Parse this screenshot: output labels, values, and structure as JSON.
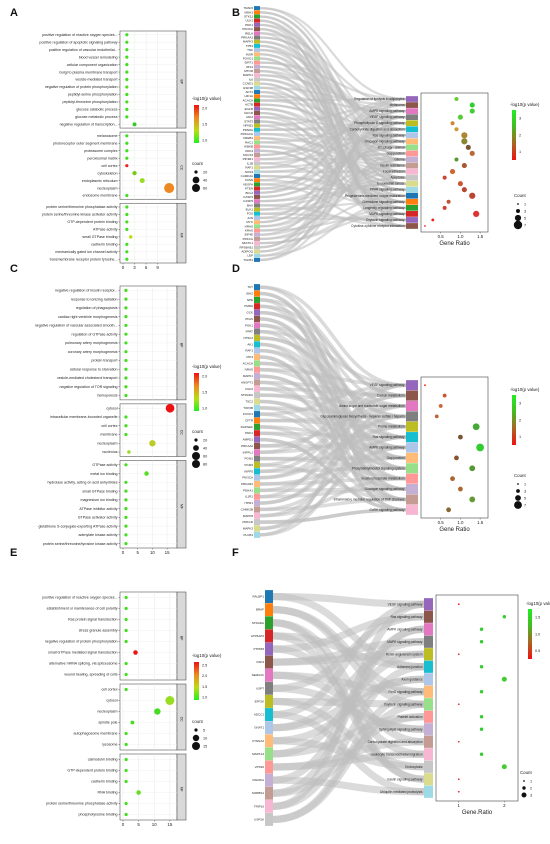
{
  "chart_data": [
    {
      "panel": "A",
      "type": "scatter",
      "groups": [
        {
          "name": "BP",
          "terms": [
            "positive regulation of reactive oxygen species...",
            "positive regulation of apoptotic signaling pathway",
            "positive regulation of vascular endothelial...",
            "blood vessel remodeling",
            "cellular component organization",
            "Golgi to plasma membrane transport",
            "vesicle-mediated transport",
            "negative regulation of protein phosphorylation",
            "peptidyl-serine phosphorylation",
            "peptidyl-threonine phosphorylation",
            "glucose catabolic process",
            "glucose metabolic process",
            "negative regulation of transcription..."
          ],
          "x": [
            1,
            1,
            1,
            1,
            1,
            1,
            1,
            1,
            1,
            1,
            1,
            1,
            3
          ],
          "color": [
            "#44dd22",
            "#44dd22",
            "#44dd22",
            "#44dd22",
            "#44dd22",
            "#44dd22",
            "#44dd22",
            "#55dd22",
            "#44dd22",
            "#44dd22",
            "#44dd22",
            "#44dd22",
            "#33cc22"
          ],
          "size": [
            20,
            20,
            20,
            20,
            20,
            20,
            20,
            20,
            20,
            20,
            20,
            20,
            24
          ]
        },
        {
          "name": "CC",
          "terms": [
            "melanosome",
            "photoreceptor outer segment membrane",
            "proteasome complex",
            "peroxisomal matrix",
            "cell cortex",
            "cytoskeleton",
            "endoplasmic reticulum",
            "nucleoplasm",
            "endosome membrane"
          ],
          "x": [
            1,
            1,
            1,
            1,
            1,
            3,
            5,
            12,
            1
          ],
          "color": [
            "#44dd22",
            "#44dd22",
            "#44dd22",
            "#44dd22",
            "#ee2222",
            "#77cc11",
            "#99dd22",
            "#ee8822",
            "#44dd22"
          ],
          "size": [
            20,
            20,
            20,
            20,
            20,
            26,
            30,
            58,
            20
          ]
        },
        {
          "name": "MF",
          "terms": [
            "protein serine/threonine phosphatase activity",
            "protein serine/threonine kinase activator activity",
            "GTP-dependent protein binding",
            "ATPase activity",
            "small GTPase binding",
            "cadherin binding",
            "mechanically gated ion channel activity",
            "transmembrane receptor protein tyrosine..."
          ],
          "x": [
            1,
            1,
            1,
            1,
            2,
            1,
            1,
            1
          ],
          "color": [
            "#44dd22",
            "#44dd22",
            "#44dd22",
            "#44dd22",
            "#bbdd11",
            "#44dd22",
            "#44dd22",
            "#44dd22"
          ],
          "size": [
            20,
            20,
            20,
            20,
            22,
            20,
            20,
            20
          ]
        }
      ],
      "xticks": [
        0,
        3,
        6,
        9
      ],
      "xlim": [
        0,
        13
      ],
      "colorbar": {
        "title": "-log10(p value)",
        "ticks": [
          "1.0",
          "1.5",
          "2.0"
        ]
      },
      "size_legend": {
        "title": "count",
        "values": [
          "20",
          "40",
          "60"
        ]
      }
    },
    {
      "panel": "B",
      "type": "scatter",
      "genes": [
        "TRAF6",
        "MDH1",
        "STK11",
        "ULK1",
        "PDK1",
        "PIK3CA",
        "RELA",
        "PRKAA1",
        "MAPK3",
        "TP53",
        "TNF",
        "INSR",
        "FOXO1",
        "SIRT1",
        "IRS1",
        "MTOR",
        "MAPK1",
        "IL6",
        "CCND1",
        "GSK3B",
        "AKT1",
        "HIF1A",
        "ACACA",
        "ACTB",
        "EGFR",
        "IGF1R",
        "JAK2",
        "STAT3",
        "NFKB1",
        "PPARG",
        "PRKACA",
        "CREB1",
        "RAC1",
        "IKBKB",
        "CDK4",
        "SOCS3",
        "PIK3R1",
        "IL1B",
        "RAF1",
        "NOS3",
        "CAMK2A",
        "FASN",
        "VEGFA",
        "PTEN",
        "BCL2",
        "CASP3",
        "CASP9",
        "BAX",
        "ELK1",
        "FOS",
        "JUN",
        "MYC",
        "HRAS",
        "KRAS",
        "EIF4E",
        "PRKCA",
        "NFATC1",
        "RPS6KB1",
        "ADIPOQ",
        "LEP",
        "TGFB1"
      ],
      "pathways": [
        "Regulation of lipolysis in adipocytes",
        "Melanoma",
        "AMPK signaling pathway",
        "VEGF signaling pathway",
        "Phospholipase D signaling pathway",
        "Carbohydrate digestion and absorption",
        "Ras signaling pathway",
        "Glucagon signaling pathway",
        "Mitophagy - animal",
        "Gap junction",
        "Glioma",
        "Insulin resistance",
        "Focal adhesion",
        "Apoptosis",
        "Endometrial cancer",
        "PPAR signaling pathway",
        "Progesterone-mediated oocyte maturation",
        "Chemokine signaling pathway",
        "Longevity regulating pathway",
        "MAPK signaling pathway",
        "Oxytocin signaling pathway",
        "Cytokine-cytokine receptor interaction"
      ],
      "x": [
        0.9,
        1.3,
        1.3,
        1.0,
        0.8,
        0.9,
        1.1,
        1.1,
        1.2,
        1.3,
        0.9,
        1.1,
        0.8,
        0.6,
        1.0,
        1.1,
        1.3,
        0.7,
        0.6,
        1.4,
        0.3,
        0.1
      ],
      "color": [
        "#66cc33",
        "#33cc33",
        "#44cc33",
        "#55cc33",
        "#cc8833",
        "#cc9933",
        "#aa8833",
        "#888833",
        "#775533",
        "#bb6633",
        "#559933",
        "#aa5533",
        "#cc6633",
        "#cc4433",
        "#cc5533",
        "#bb4433",
        "#bb4433",
        "#bb5533",
        "#cc4433",
        "#dd3333",
        "#ee2222",
        "#ee2222"
      ],
      "size": [
        3,
        4,
        4,
        4,
        3,
        3,
        5,
        5,
        4,
        4,
        3,
        4,
        4,
        3,
        4,
        4,
        5,
        3,
        3,
        5,
        2,
        1
      ],
      "xticks": [
        "0.5",
        "1.0",
        "1.5"
      ],
      "xlabel": "Gene Ratio",
      "colorbar": {
        "title": "-log10(p value)",
        "ticks": [
          "1",
          "2",
          "3"
        ]
      },
      "size_legend": {
        "title": "Count",
        "values": [
          "1",
          "3",
          "5",
          "7"
        ]
      }
    },
    {
      "panel": "C",
      "type": "scatter",
      "groups": [
        {
          "name": "BP",
          "terms": [
            "negative regulation of insulin receptor...",
            "response to ionizing radiation",
            "regulation of phagocytosis",
            "cardiac right ventricle morphogenesis",
            "negative regulation of vascular associated smooth...",
            "regulation of GTPase activity",
            "pulmonary artery morphogenesis",
            "coronary artery morphogenesis",
            "protein transport",
            "cellular response to starvation",
            "vesicle-mediated cholesterol transport",
            "negative regulation of TOR signaling",
            "hemopoiesis"
          ],
          "x": [
            1,
            1,
            1,
            1,
            1,
            1,
            1,
            1,
            1,
            1,
            1,
            1,
            1
          ],
          "color": [
            "#44dd22",
            "#44dd22",
            "#44dd22",
            "#44dd22",
            "#44dd22",
            "#44dd22",
            "#44dd22",
            "#44dd22",
            "#44dd22",
            "#44dd22",
            "#44dd22",
            "#44dd22",
            "#44dd22"
          ],
          "size": [
            20,
            20,
            20,
            20,
            20,
            20,
            20,
            20,
            20,
            20,
            20,
            20,
            20
          ]
        },
        {
          "name": "CC",
          "terms": [
            "cytosol",
            "intracellular membrane-bounded organelle",
            "cell cortex",
            "membrane",
            "nucleoplasm",
            "nucleolus"
          ],
          "x": [
            16,
            1,
            1,
            1,
            10,
            2
          ],
          "color": [
            "#ee1111",
            "#44dd22",
            "#44dd22",
            "#44dd22",
            "#bbcc22",
            "#99dd22"
          ],
          "size": [
            62,
            20,
            20,
            20,
            44,
            22
          ]
        },
        {
          "name": "MF",
          "terms": [
            "GTPase activity",
            "metal ion binding",
            "hydrolase activity, acting on acid anhydrides",
            "small GTPase binding",
            "magnesium ion binding",
            "ATPase inhibitor activity",
            "GTPase activator activity",
            "glutathione S-conjugate-exporting ATPase activity",
            "adenylate kinase activity",
            "protein serine/threonine/tyrosine kinase activity"
          ],
          "x": [
            1,
            8,
            1,
            1,
            1,
            1,
            1,
            1,
            1,
            1
          ],
          "color": [
            "#44dd22",
            "#55dd22",
            "#44dd22",
            "#44dd22",
            "#44dd22",
            "#44dd22",
            "#44dd22",
            "#44dd22",
            "#44dd22",
            "#44dd22"
          ],
          "size": [
            20,
            30,
            20,
            20,
            20,
            20,
            20,
            20,
            20,
            20
          ]
        }
      ],
      "xticks": [
        0,
        5,
        10,
        15
      ],
      "xlim": [
        0,
        17
      ],
      "colorbar": {
        "title": "-log10(p value)",
        "ticks": [
          "1.0",
          "1.5",
          "2.0"
        ]
      },
      "size_legend": {
        "title": "count",
        "values": [
          "20",
          "40",
          "60",
          "80"
        ]
      }
    },
    {
      "panel": "D",
      "type": "scatter",
      "genes": [
        "TKT",
        "IDH2",
        "NPE",
        "PMM2",
        "GCK",
        "PFAS",
        "PGK1",
        "PPAT",
        "NT5C2",
        "AK1",
        "RAF1",
        "PIK3",
        "ACACA",
        "NRAS",
        "MAPK1",
        "ANGPT1",
        "FGF2",
        "STRADA",
        "TSC2",
        "TOP2B",
        "FOXO1",
        "CFTR",
        "RAPGEF",
        "PDK1",
        "AMPD1",
        "PRKAA2",
        "INPPL1",
        "PGM1",
        "PGM3",
        "INPP5",
        "PIK3CA",
        "PRKAR2",
        "PDHA1",
        "IL1R1",
        "ITPR1",
        "CAMK2B",
        "MAPK8",
        "PRKCD",
        "MAPK3",
        "PLCB1"
      ],
      "pathways": [
        "VEGF signaling pathway",
        "Carbon metabolism",
        "Amino sugar and nucleotide sugar metabolism",
        "Glycosaminoglycan biosynthesis - heparan sulfate / heparin",
        "Purine metabolism",
        "Ras signaling pathway",
        "AMPK signaling pathway",
        "Gap junction",
        "Phosphatidylinositol signaling system",
        "Inositol phosphate metabolism",
        "Glucagon signaling pathway",
        "Inflammatory mediator regulation of TRP channels",
        "GnRH signaling pathway"
      ],
      "x": [
        0.1,
        0.6,
        0.5,
        0.4,
        1.4,
        1.0,
        1.5,
        0.9,
        1.3,
        0.8,
        1.0,
        1.3,
        0.7
      ],
      "color": [
        "#ee2222",
        "#cc5533",
        "#cc6633",
        "#bb6633",
        "#44aa33",
        "#775533",
        "#33cc33",
        "#885533",
        "#559933",
        "#aa6633",
        "#aa6633",
        "#669933",
        "#886633"
      ],
      "size": [
        1,
        3,
        3,
        3,
        6,
        4,
        7,
        4,
        5,
        4,
        4,
        5,
        4
      ],
      "xticks": [
        "0.5",
        "1.0",
        "1.5"
      ],
      "xlabel": "Gene Ratio",
      "colorbar": {
        "title": "-log10(p value)",
        "ticks": [
          "1",
          "2",
          "3"
        ]
      },
      "size_legend": {
        "title": "Count",
        "values": [
          "1",
          "3",
          "5",
          "7"
        ]
      }
    },
    {
      "panel": "E",
      "type": "scatter",
      "groups": [
        {
          "name": "BP",
          "terms": [
            "positive regulation of reactive oxygen species...",
            "establishment or maintenance of cell polarity",
            "Ras protein signal transduction",
            "stress granule assembly",
            "negative regulation of protein phosphorylation",
            "small GTPase mediated signal transduction",
            "alternative mRNA splicing, via spliceosome",
            "wound healing, spreading of cells"
          ],
          "x": [
            1,
            1,
            1,
            1,
            1,
            4,
            1,
            1
          ],
          "color": [
            "#44dd22",
            "#44dd22",
            "#44dd22",
            "#44dd22",
            "#44dd22",
            "#ee1111",
            "#44dd22",
            "#44dd22"
          ],
          "size": [
            5,
            5,
            5,
            5,
            5,
            7,
            5,
            5
          ]
        },
        {
          "name": "CC",
          "terms": [
            "cell cortex",
            "cytosol",
            "nucleoplasm",
            "spindle pole",
            "autophagosome membrane",
            "lysosome"
          ],
          "x": [
            1,
            15,
            11,
            3,
            1,
            1
          ],
          "color": [
            "#44dd22",
            "#99dd22",
            "#44dd22",
            "#44dd22",
            "#44dd22",
            "#44dd22"
          ],
          "size": [
            5,
            14,
            10,
            6,
            5,
            5
          ]
        },
        {
          "name": "MF",
          "terms": [
            "calmodulin binding",
            "GTP-dependent protein binding",
            "cadherin binding",
            "RNA binding",
            "protein serine/threonine phosphatase activity",
            "phosphotyrosine binding"
          ],
          "x": [
            1,
            1,
            1,
            5,
            1,
            1
          ],
          "color": [
            "#44dd22",
            "#44dd22",
            "#44dd22",
            "#66dd22",
            "#44dd22",
            "#44dd22"
          ],
          "size": [
            5,
            5,
            5,
            7,
            5,
            5
          ]
        }
      ],
      "xticks": [
        0,
        5,
        10,
        15
      ],
      "xlim": [
        0,
        16
      ],
      "colorbar": {
        "title": "-log10(p value)",
        "ticks": [
          "1.0",
          "1.5",
          "2.0",
          "2.5"
        ]
      },
      "size_legend": {
        "title": "count",
        "values": [
          "5",
          "10",
          "15"
        ]
      }
    },
    {
      "panel": "F",
      "type": "scatter",
      "genes": [
        "RALBP1",
        "BRAF",
        "STRADA",
        "ATP6AP2",
        "PTPRM",
        "PAK3",
        "SEMA3C",
        "USP7",
        "EFF2K",
        "ADCC1",
        "GNAT1",
        "CTNNA2",
        "MAPK14",
        "VPS36",
        "PAK6KA",
        "SORBS1",
        "TRIP10",
        "USP2A"
      ],
      "pathways": [
        "VEGF signaling pathway",
        "Ras signaling pathway",
        "AMPK signaling pathway",
        "MAPK signaling pathway",
        "Renin-angiotensin system",
        "Adherens junction",
        "Axon guidance",
        "FoxO signaling pathway",
        "Oxytocin signaling pathway",
        "Platelet activation",
        "Sphingolipid signaling pathway",
        "Carbohydrate digestion and absorption",
        "Leukocyte transendothelial migration",
        "Endocytosis",
        "Insulin signaling pathway",
        "Ubiquitin mediated proteolysis"
      ],
      "x": [
        1.0,
        2.0,
        1.5,
        1.5,
        1.0,
        1.5,
        2.0,
        1.5,
        1.0,
        1.5,
        1.5,
        1.0,
        1.5,
        2.0,
        1.0,
        1.0
      ],
      "color": [
        "#ee2222",
        "#33cc33",
        "#33cc33",
        "#33cc33",
        "#dd3333",
        "#33cc33",
        "#44cc33",
        "#33cc33",
        "#cc4433",
        "#33cc33",
        "#33cc33",
        "#cc4433",
        "#33cc33",
        "#44cc33",
        "#dd3333",
        "#dd3333"
      ],
      "size": [
        1,
        2,
        2,
        2,
        1,
        2,
        3,
        2,
        1,
        2,
        2,
        1,
        2,
        3,
        1,
        1
      ],
      "xticks": [
        "1",
        "2"
      ],
      "xlabel": "Gene.Ratio",
      "colorbar": {
        "title": "-log10(p value)",
        "ticks": [
          "0.5",
          "1.0",
          "1.5"
        ]
      },
      "size_legend": {
        "title": "Count",
        "values": [
          "1",
          "2",
          "3"
        ]
      }
    }
  ],
  "panel_labels": [
    "A",
    "B",
    "C",
    "D",
    "E",
    "F"
  ],
  "axis_zero": "0"
}
